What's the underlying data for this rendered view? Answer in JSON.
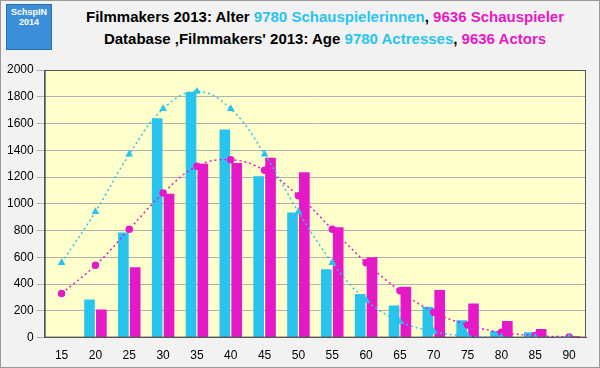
{
  "chart_data": {
    "type": "bar",
    "title": [
      [
        {
          "text": "Filmmakers 2013: Alter ",
          "color": "#000000"
        },
        {
          "text": "9780 Schauspielerinnen",
          "color": "#29c4ee"
        },
        {
          "text": ", ",
          "color": "#000000"
        },
        {
          "text": "9636 Schauspieler",
          "color": "#e619c8"
        }
      ],
      [
        {
          "text": "Database ‚Filmmakers' 2013: Age ",
          "color": "#000000"
        },
        {
          "text": "9780 Actresses",
          "color": "#29c4ee"
        },
        {
          "text": ", ",
          "color": "#000000"
        },
        {
          "text": "9636 Actors",
          "color": "#e619c8"
        }
      ]
    ],
    "annotations": [
      "SchspIN 2014"
    ],
    "categories": [
      "15",
      "20",
      "25",
      "30",
      "35",
      "40",
      "45",
      "50",
      "55",
      "60",
      "65",
      "70",
      "75",
      "80",
      "85",
      "90"
    ],
    "series": [
      {
        "color": "#29c4ee",
        "values": [
          null,
          285,
          785,
          1640,
          1835,
          1555,
          1205,
          935,
          510,
          325,
          240,
          230,
          130,
          50,
          40,
          5
        ]
      },
      {
        "color": "#e619c8",
        "values": [
          null,
          210,
          525,
          1075,
          1300,
          1305,
          1345,
          1235,
          825,
          600,
          380,
          355,
          255,
          125,
          65,
          10
        ]
      },
      {
        "type": "line",
        "color": "#29c4ee",
        "line_style": "dotted",
        "marker": "triangle",
        "values": [
          560,
          940,
          1370,
          1710,
          1840,
          1710,
          1370,
          940,
          560,
          280,
          120,
          45,
          10,
          1,
          0,
          0
        ]
      },
      {
        "type": "line",
        "color": "#e619c8",
        "line_style": "dotted",
        "marker": "circle",
        "values": [
          330,
          540,
          810,
          1080,
          1280,
          1330,
          1250,
          1060,
          810,
          560,
          350,
          190,
          95,
          40,
          15,
          5
        ]
      }
    ],
    "ylim": [
      0,
      2000
    ],
    "yticks": [
      0,
      200,
      400,
      600,
      800,
      1000,
      1200,
      1400,
      1600,
      1800,
      2000
    ],
    "grid": true
  }
}
